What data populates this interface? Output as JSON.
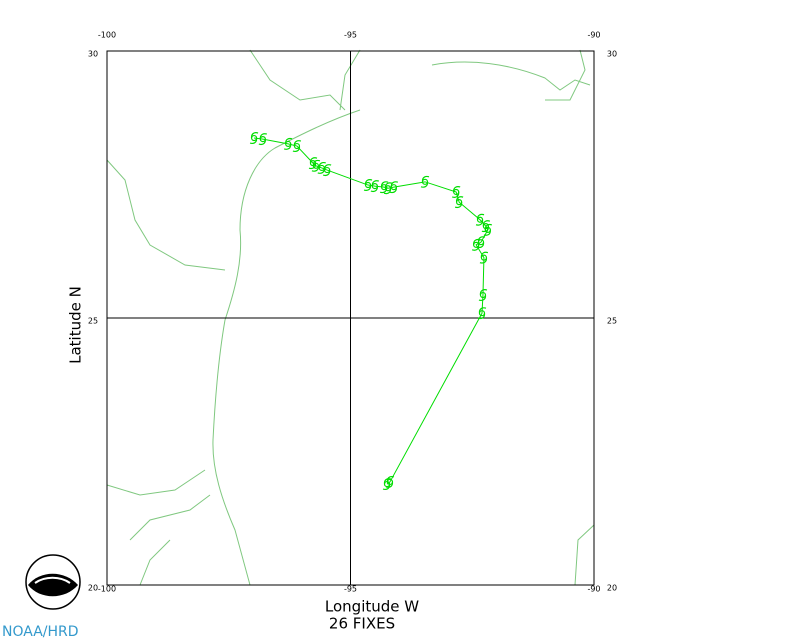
{
  "chart_data": {
    "type": "track",
    "x_label": "Longitude W",
    "y_label": "Latitude N",
    "note": "26 FIXES",
    "credit": "NOAA/HRD",
    "xlim": [
      -100,
      -90
    ],
    "ylim": [
      20,
      30
    ],
    "xticks": [
      -100,
      -95,
      -90
    ],
    "yticks": [
      20,
      25,
      30
    ],
    "grid": true,
    "color": "#00dd00",
    "x": [
      -94.25,
      -94.19,
      -92.3,
      -92.28,
      -92.26,
      -92.42,
      -92.32,
      -92.18,
      -92.22,
      -92.34,
      -92.77,
      -92.83,
      -93.47,
      -94.11,
      -94.23,
      -94.31,
      -94.5,
      -94.64,
      -95.48,
      -95.59,
      -95.71,
      -95.77,
      -96.1,
      -96.28,
      -96.8,
      -96.98
    ],
    "values": [
      21.89,
      21.93,
      25.09,
      25.43,
      26.13,
      26.37,
      26.42,
      26.65,
      26.72,
      26.84,
      27.17,
      27.36,
      27.55,
      27.45,
      27.43,
      27.45,
      27.47,
      27.49,
      27.77,
      27.81,
      27.85,
      27.9,
      28.22,
      28.26,
      28.35,
      28.37
    ]
  }
}
